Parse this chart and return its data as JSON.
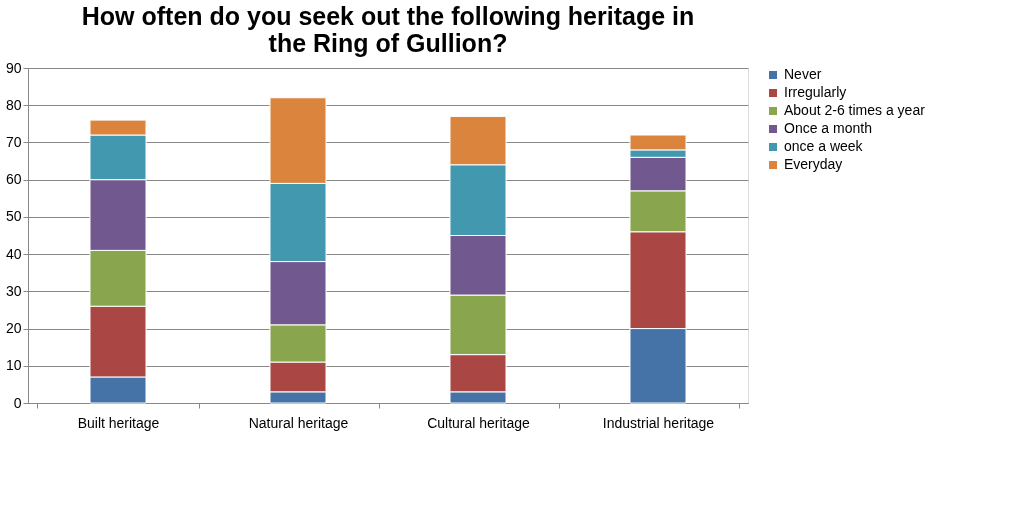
{
  "chart_data": {
    "type": "bar",
    "title": "How often do you seek out the following heritage in the Ring of Gullion?",
    "stacked": true,
    "categories": [
      "Built heritage",
      "Natural heritage",
      "Cultural heritage",
      "Industrial heritage"
    ],
    "series": [
      {
        "name": "Never",
        "color": "#4572a7",
        "values": [
          7,
          3,
          3,
          20
        ]
      },
      {
        "name": "Irregularly",
        "color": "#aa4643",
        "values": [
          19,
          8,
          10,
          26
        ]
      },
      {
        "name": "About 2-6 times a year",
        "color": "#89a54e",
        "values": [
          15,
          10,
          16,
          11
        ]
      },
      {
        "name": "Once a month",
        "color": "#71588f",
        "values": [
          19,
          17,
          16,
          9
        ]
      },
      {
        "name": "once a week",
        "color": "#4198af",
        "values": [
          12,
          21,
          19,
          2
        ]
      },
      {
        "name": "Everyday",
        "color": "#db843d",
        "values": [
          4,
          23,
          13,
          4
        ]
      }
    ],
    "ylim": [
      0,
      90
    ],
    "yticks": [
      0,
      10,
      20,
      30,
      40,
      50,
      60,
      70,
      80,
      90
    ],
    "grid": "y",
    "legend": "right"
  }
}
